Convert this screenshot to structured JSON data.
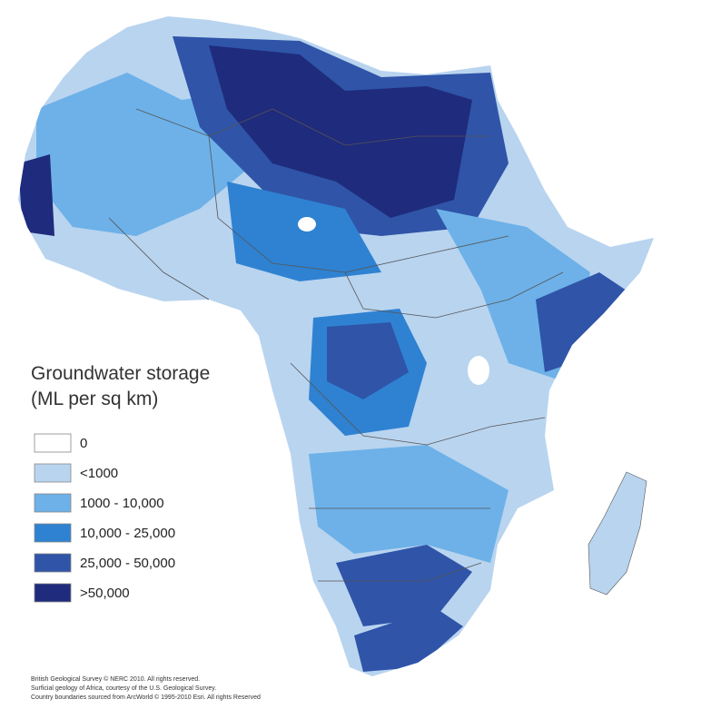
{
  "legend": {
    "title": "Groundwater storage",
    "subtitle": "(ML per sq km)",
    "items": [
      {
        "label": "0",
        "color": "#ffffff"
      },
      {
        "label": "<1000",
        "color": "#b9d4ef"
      },
      {
        "label": "1000 - 10,000",
        "color": "#6db1e8"
      },
      {
        "label": "10,000 - 25,000",
        "color": "#2f82d2"
      },
      {
        "label": "25,000 - 50,000",
        "color": "#2f54a8"
      },
      {
        "label": ">50,000",
        "color": "#1f2b7c"
      }
    ]
  },
  "credits": [
    "British Geological Survey © NERC 2010.  All rights reserved.",
    "Surficial geology of Africa, courtesy of the U.S. Geological Survey.",
    "Country boundaries sourced from ArcWorld © 1995-2010 Esri.  All rights Reserved"
  ]
}
